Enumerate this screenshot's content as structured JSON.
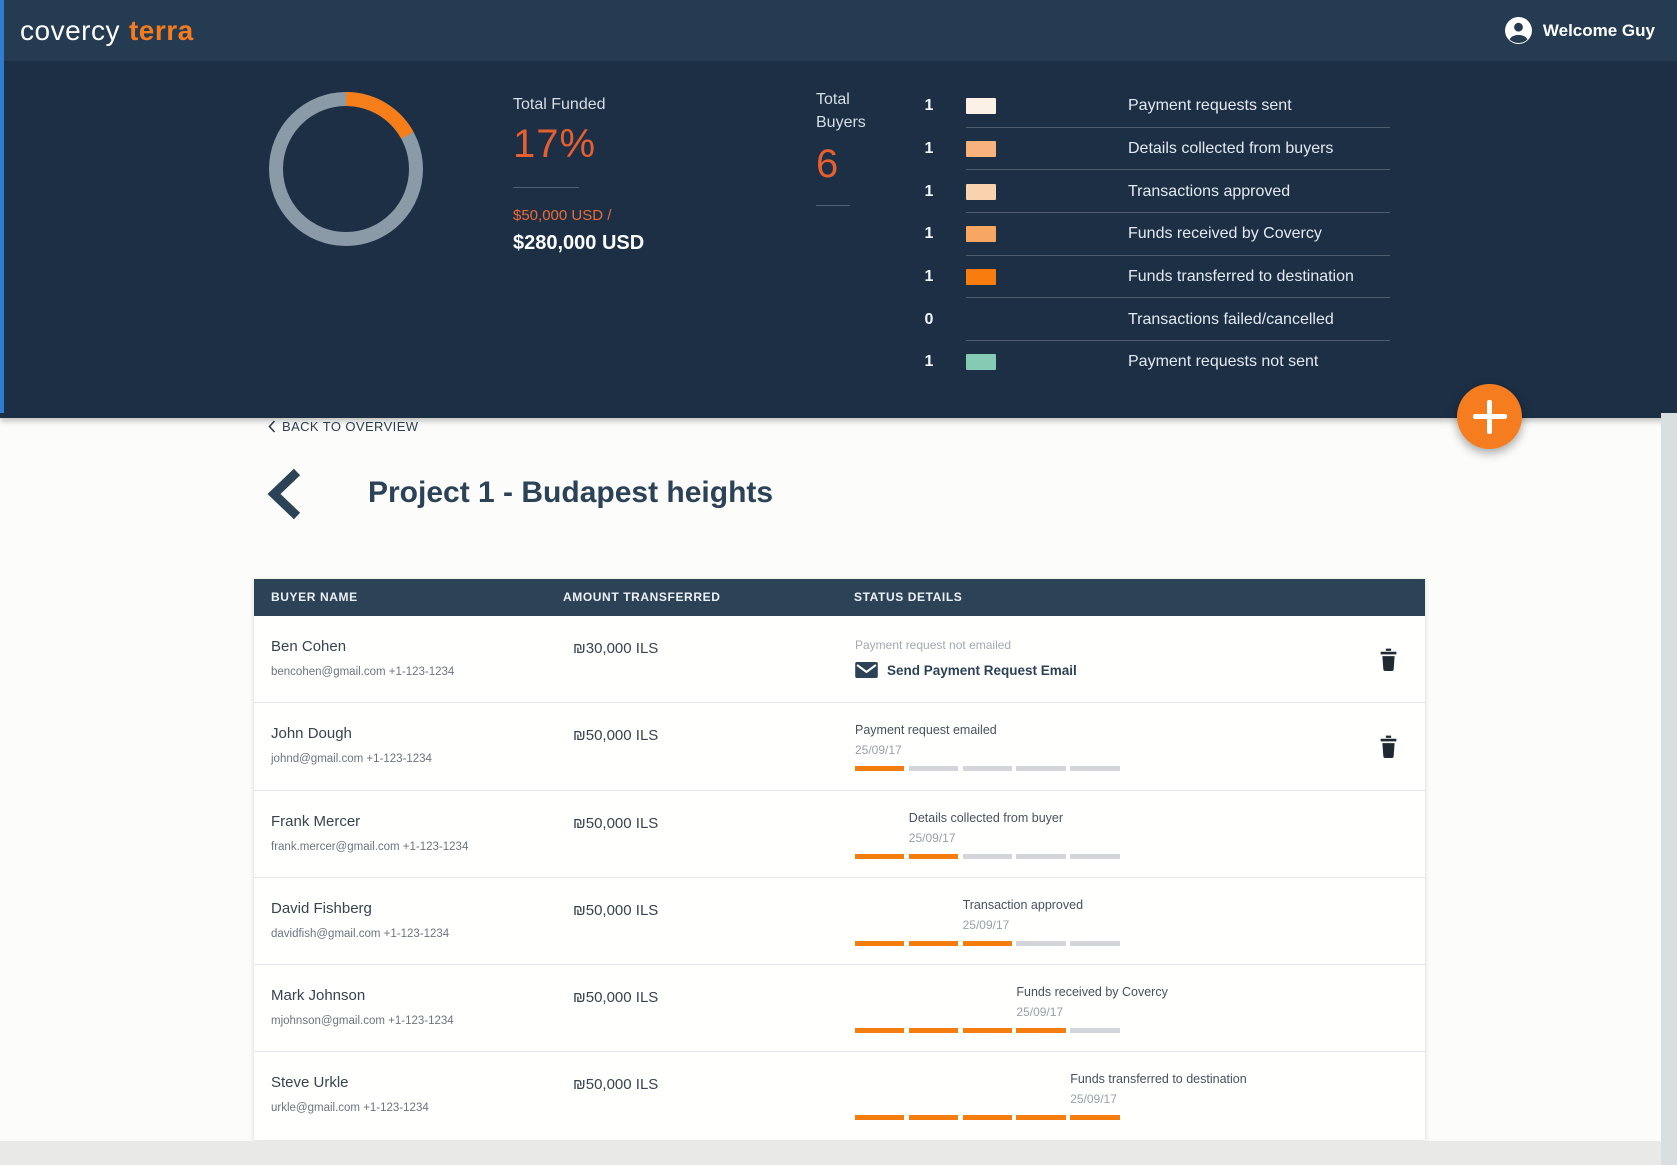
{
  "nav": {
    "logo_primary": "covercy",
    "logo_accent": "terra",
    "welcome": "Welcome Guy"
  },
  "hero": {
    "funded": {
      "label": "Total Funded",
      "percent": "17%",
      "percent_value": 17,
      "raised_line": "$50,000 USD /",
      "target": "$280,000 USD"
    },
    "buyers": {
      "label_line1": "Total",
      "label_line2": "Buyers",
      "count": "6"
    },
    "legend": [
      {
        "count": "1",
        "color": "#fcf1e7",
        "label": "Payment requests sent"
      },
      {
        "count": "1",
        "color": "#f7b27e",
        "label": "Details collected from buyers"
      },
      {
        "count": "1",
        "color": "#f9d2ae",
        "label": "Transactions approved"
      },
      {
        "count": "1",
        "color": "#f8a763",
        "label": "Funds received by Covercy"
      },
      {
        "count": "1",
        "color": "#f87d0e",
        "label": "Funds transferred to destination"
      },
      {
        "count": "0",
        "color": null,
        "label": "Transactions failed/cancelled"
      },
      {
        "count": "1",
        "color": "#85cbb4",
        "label": "Payment requests not sent"
      }
    ]
  },
  "chart_data": {
    "type": "pie",
    "donut": true,
    "title": "Total Funded",
    "labels": [
      "Funded",
      "Remaining"
    ],
    "values": [
      17,
      83
    ],
    "colors": [
      "#f57d1a",
      "#8b9aa7"
    ]
  },
  "back_link": {
    "label": "BACK TO OVERVIEW"
  },
  "page_title": "Project 1 - Budapest heights",
  "table": {
    "columns": [
      "BUYER NAME",
      "AMOUNT TRANSFERRED",
      "STATUS DETAILS"
    ],
    "rows": [
      {
        "name": "Ben Cohen",
        "contact": "bencohen@gmail.com +1-123-1234",
        "amount": "₪30,000 ILS",
        "deletable": true,
        "status": {
          "type": "action",
          "note": "Payment request not emailed",
          "action": "Send Payment Request Email"
        }
      },
      {
        "name": "John Dough",
        "contact": "johnd@gmail.com +1-123-1234",
        "amount": "₪50,000 ILS",
        "deletable": true,
        "status": {
          "type": "progress",
          "label": "Payment request emailed",
          "date": "25/09/17",
          "stage": 1,
          "total": 5
        }
      },
      {
        "name": "Frank Mercer",
        "contact": "frank.mercer@gmail.com +1-123-1234",
        "amount": "₪50,000 ILS",
        "deletable": false,
        "status": {
          "type": "progress",
          "label": "Details collected from buyer",
          "date": "25/09/17",
          "stage": 2,
          "total": 5
        }
      },
      {
        "name": "David Fishberg",
        "contact": "davidfish@gmail.com +1-123-1234",
        "amount": "₪50,000 ILS",
        "deletable": false,
        "status": {
          "type": "progress",
          "label": "Transaction approved",
          "date": "25/09/17",
          "stage": 3,
          "total": 5
        }
      },
      {
        "name": "Mark Johnson",
        "contact": "mjohnson@gmail.com +1-123-1234",
        "amount": "₪50,000 ILS",
        "deletable": false,
        "status": {
          "type": "progress",
          "label": "Funds received by Covercy",
          "date": "25/09/17",
          "stage": 4,
          "total": 5
        }
      },
      {
        "name": "Steve Urkle",
        "contact": "urkle@gmail.com +1-123-1234",
        "amount": "₪50,000 ILS",
        "deletable": false,
        "status": {
          "type": "progress",
          "label": "Funds transferred to destination",
          "date": "25/09/17",
          "stage": 5,
          "total": 5
        }
      }
    ]
  },
  "fab": {
    "label": "+"
  }
}
